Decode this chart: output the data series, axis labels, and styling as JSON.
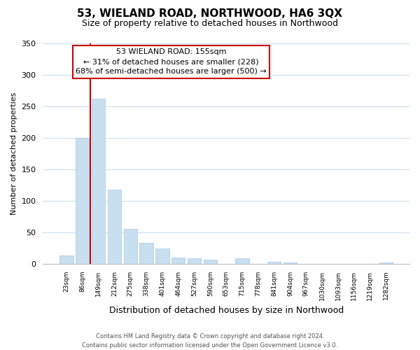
{
  "title": "53, WIELAND ROAD, NORTHWOOD, HA6 3QX",
  "subtitle": "Size of property relative to detached houses in Northwood",
  "xlabel": "Distribution of detached houses by size in Northwood",
  "ylabel": "Number of detached properties",
  "bar_labels": [
    "23sqm",
    "86sqm",
    "149sqm",
    "212sqm",
    "275sqm",
    "338sqm",
    "401sqm",
    "464sqm",
    "527sqm",
    "590sqm",
    "653sqm",
    "715sqm",
    "778sqm",
    "841sqm",
    "904sqm",
    "967sqm",
    "1030sqm",
    "1093sqm",
    "1156sqm",
    "1219sqm",
    "1282sqm"
  ],
  "bar_values": [
    13,
    200,
    262,
    118,
    55,
    33,
    24,
    10,
    9,
    6,
    0,
    9,
    0,
    3,
    2,
    0,
    0,
    0,
    0,
    0,
    2
  ],
  "bar_color": "#c8dff0",
  "bar_edge_color": "#a8c8e8",
  "vline_x": 1.5,
  "vline_color": "#cc0000",
  "ylim": [
    0,
    350
  ],
  "yticks": [
    0,
    50,
    100,
    150,
    200,
    250,
    300,
    350
  ],
  "annotation_title": "53 WIELAND ROAD: 155sqm",
  "annotation_line1": "← 31% of detached houses are smaller (228)",
  "annotation_line2": "68% of semi-detached houses are larger (500) →",
  "footer_line1": "Contains HM Land Registry data © Crown copyright and database right 2024.",
  "footer_line2": "Contains public sector information licensed under the Open Government Licence v3.0.",
  "bg_color": "#ffffff",
  "grid_color": "#c8dff0",
  "annotation_box_color": "#ffffff",
  "annotation_box_edge": "#cc0000",
  "title_fontsize": 11,
  "subtitle_fontsize": 9,
  "ylabel_fontsize": 8,
  "xlabel_fontsize": 9,
  "tick_fontsize": 8,
  "xtick_fontsize": 6.5
}
